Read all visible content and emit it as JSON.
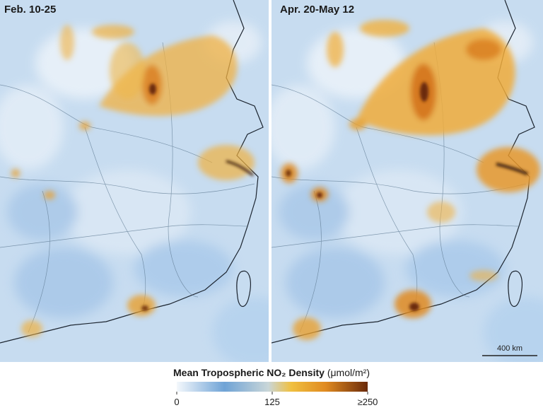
{
  "panels": [
    {
      "label": "Feb. 10-25"
    },
    {
      "label": "Apr. 20-May 12"
    }
  ],
  "scale_bar": {
    "label": "400 km"
  },
  "colorbar": {
    "title": "Mean Tropospheric NO₂ Density",
    "unit": "(μmol/m²)",
    "range": [
      0,
      250
    ],
    "ticks": [
      0,
      125,
      {
        "value": 250,
        "label": "≥250"
      }
    ]
  }
}
